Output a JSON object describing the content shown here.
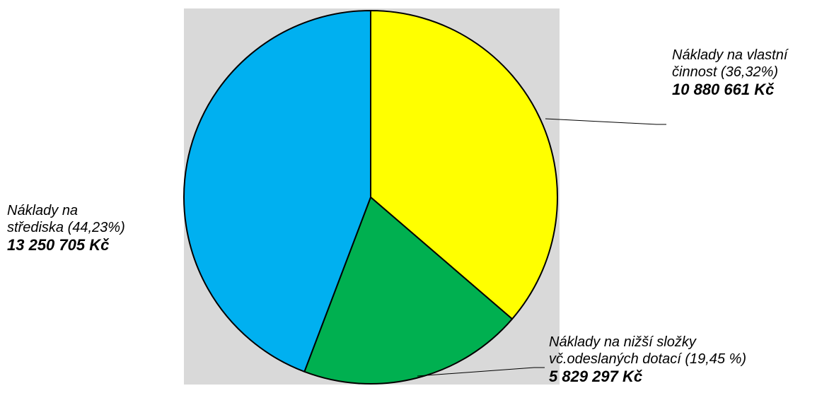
{
  "chart_data": {
    "type": "pie",
    "slices": [
      {
        "label_lines": [
          "Náklady na vlastní",
          "činnost (36,32%)"
        ],
        "amount": "10 880 661 Kč",
        "value": 10880661,
        "percent": 36.32,
        "color": "#FFFF00"
      },
      {
        "label_lines": [
          "Náklady na nižší složky",
          "vč.odeslaných dotací (19,45 %)"
        ],
        "amount": "5 829 297 Kč",
        "value": 5829297,
        "percent": 19.45,
        "color": "#00B050"
      },
      {
        "label_lines": [
          "Náklady na",
          "střediska (44,23%)"
        ],
        "amount": "13 250 705 Kč",
        "value": 13250705,
        "percent": 44.23,
        "color": "#00B0F0"
      }
    ],
    "plot_background": "#D9D9D9",
    "outline_color": "#000000"
  }
}
